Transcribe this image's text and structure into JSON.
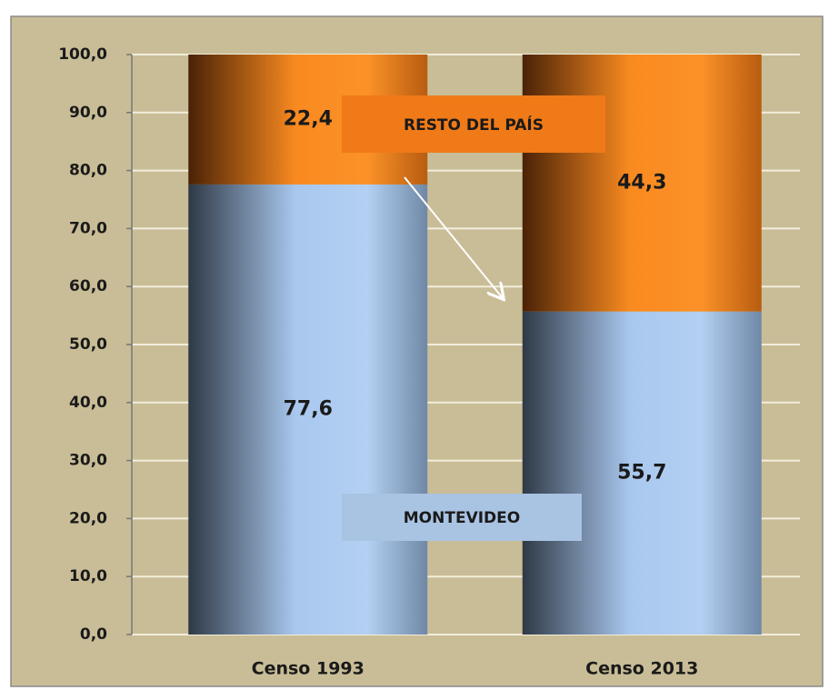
{
  "chart_data": {
    "type": "stacked_bar",
    "categories": [
      "Censo 1993",
      "Censo 2013"
    ],
    "series": [
      {
        "name": "MONTEVIDEO",
        "color": "#a9c8ee",
        "values": [
          77.6,
          55.7
        ],
        "value_labels": [
          "77,6",
          "55,7"
        ]
      },
      {
        "name": "RESTO DEL PAÍS",
        "color": "#f98a20",
        "values": [
          22.4,
          44.3
        ],
        "value_labels": [
          "22,4",
          "44,3"
        ]
      }
    ],
    "ylim": [
      0,
      100
    ],
    "yticks": [
      {
        "value": 0,
        "label": "0,0"
      },
      {
        "value": 10,
        "label": "10,0"
      },
      {
        "value": 20,
        "label": "20,0"
      },
      {
        "value": 30,
        "label": "30,0"
      },
      {
        "value": 40,
        "label": "40,0"
      },
      {
        "value": 50,
        "label": "50,0"
      },
      {
        "value": 60,
        "label": "60,0"
      },
      {
        "value": 70,
        "label": "70,0"
      },
      {
        "value": 80,
        "label": "80,0"
      },
      {
        "value": 90,
        "label": "90,0"
      },
      {
        "value": 100,
        "label": "100,0"
      }
    ],
    "grid": true
  }
}
